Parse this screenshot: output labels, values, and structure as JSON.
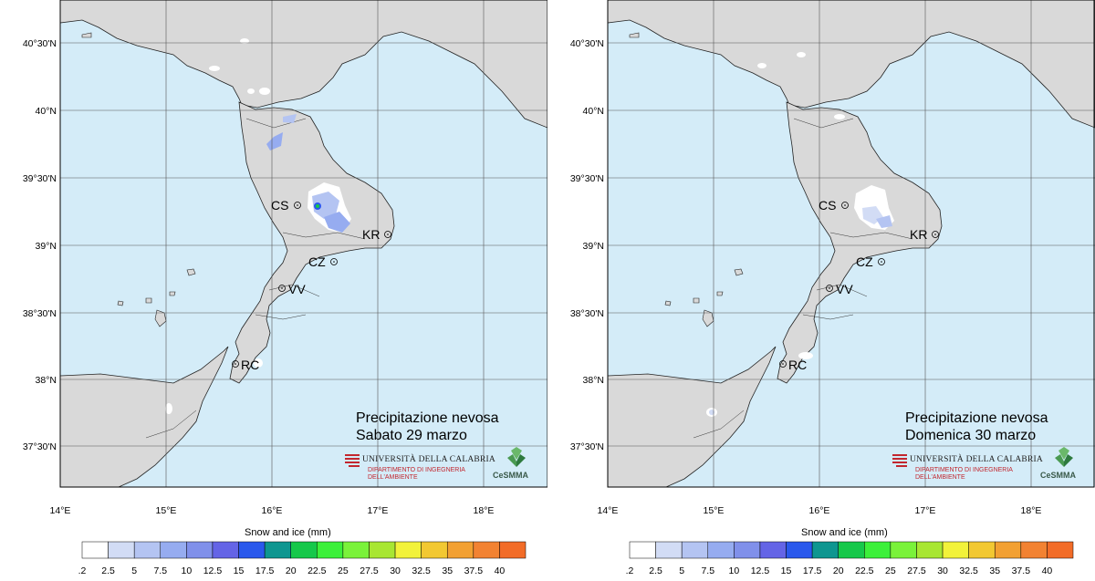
{
  "panels": [
    {
      "title_line1": "Precipitazione nevosa",
      "title_line2": "Sabato 29 marzo"
    },
    {
      "title_line1": "Precipitazione nevosa",
      "title_line2": "Domenica 30 marzo"
    }
  ],
  "axes": {
    "lat_labels": [
      "40°30'N",
      "40°N",
      "39°30'N",
      "39°N",
      "38°30'N",
      "38°N",
      "37°30'N"
    ],
    "lon_labels": [
      "14°E",
      "15°E",
      "16°E",
      "17°E",
      "18°E"
    ]
  },
  "cities": [
    "CS",
    "KR",
    "CZ",
    "VV",
    "RC"
  ],
  "logos": {
    "university": "UNIVERSITÀ DELLA CALABRIA",
    "department_line1": "DIPARTIMENTO DI INGEGNERIA",
    "department_line2": "DELL'AMBIENTE",
    "center": "CeSMMA"
  },
  "colorbar": {
    "title": "Snow and ice (mm)",
    "labels": [
      ".2",
      "2.5",
      "5",
      "7.5",
      "10",
      "12.5",
      "15",
      "17.5",
      "20",
      "22.5",
      "25",
      "27.5",
      "30",
      "32.5",
      "35",
      "37.5",
      "40"
    ],
    "colors": [
      "#ffffff",
      "#d2dcf5",
      "#b4c4f2",
      "#96acf0",
      "#8090ea",
      "#6464e6",
      "#2a58ec",
      "#0e9690",
      "#16c84a",
      "#3cf03a",
      "#7af23a",
      "#a8e632",
      "#f2f23a",
      "#f2c832",
      "#f2a032",
      "#f28232",
      "#f26c28"
    ]
  }
}
